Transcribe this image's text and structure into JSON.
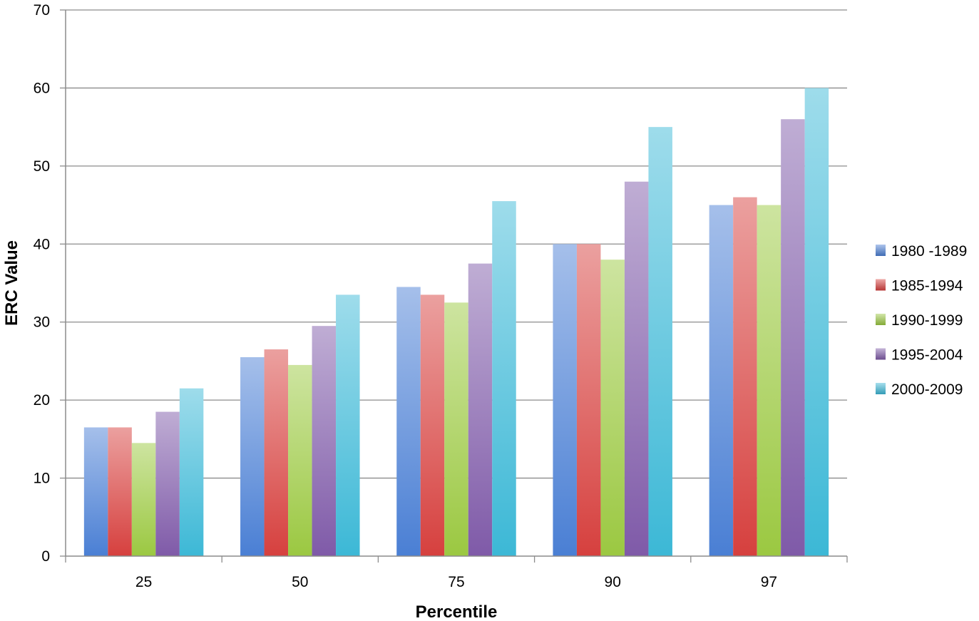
{
  "chart_data": {
    "type": "bar",
    "xlabel": "Percentile",
    "ylabel": "ERC Value",
    "categories": [
      "25",
      "50",
      "75",
      "90",
      "97"
    ],
    "ylim": [
      0,
      70
    ],
    "yticks": [
      "0",
      "10",
      "20",
      "30",
      "40",
      "50",
      "60",
      "70"
    ],
    "grid": true,
    "legend_position": "right",
    "series": [
      {
        "name": "1980 -1989",
        "color": "#4a7fd4",
        "values": [
          16.5,
          25.5,
          34.5,
          40,
          45
        ]
      },
      {
        "name": "1985-1994",
        "color": "#d6403e",
        "values": [
          16.5,
          26.5,
          33.5,
          40,
          46
        ]
      },
      {
        "name": "1990-1999",
        "color": "#9bc841",
        "values": [
          14.5,
          24.5,
          32.5,
          38,
          45
        ]
      },
      {
        "name": "1995-2004",
        "color": "#7f5aa8",
        "values": [
          18.5,
          29.5,
          37.5,
          48,
          56
        ]
      },
      {
        "name": "2000-2009",
        "color": "#3cb8d6",
        "values": [
          21.5,
          33.5,
          45.5,
          55,
          60
        ]
      }
    ]
  }
}
